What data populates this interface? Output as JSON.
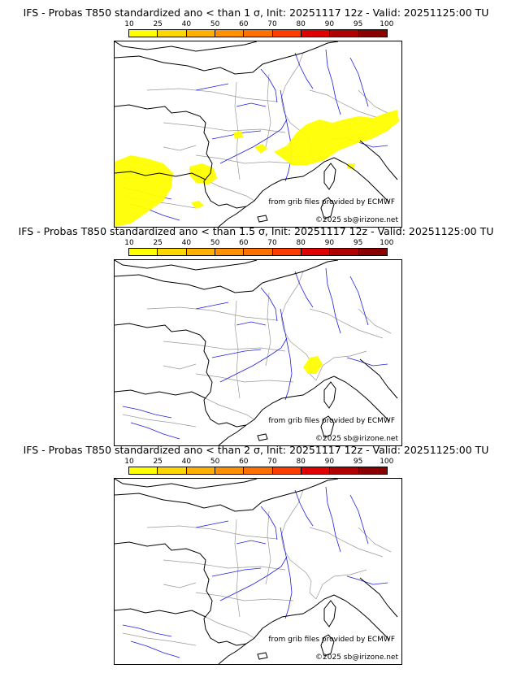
{
  "legend": {
    "ticks": [
      "10",
      "25",
      "40",
      "50",
      "60",
      "70",
      "80",
      "90",
      "95",
      "100"
    ],
    "colors": [
      "#ffff00",
      "#ffd700",
      "#ffb000",
      "#ff9000",
      "#ff7000",
      "#ff3c00",
      "#e00000",
      "#b00000",
      "#8a0000"
    ]
  },
  "map": {
    "coast_color": "#000000",
    "river_color": "#2020dd",
    "border_color": "#999999"
  },
  "panels": [
    {
      "title": "IFS - Probas T850  standardized ano < than 1 σ, Init: 20251117 12z - Valid: 20251125:00 TU",
      "source": "from grib files provided by ECMWF",
      "copyright": "©2025 sb@irizone.net",
      "threshold_sigma": "1"
    },
    {
      "title": "IFS - Probas T850  standardized ano < than 1.5 σ, Init: 20251117 12z - Valid: 20251125:00 TU",
      "source": "from grib files provided by ECMWF",
      "copyright": "©2025 sb@irizone.net",
      "threshold_sigma": "1.5"
    },
    {
      "title": "IFS - Probas T850  standardized ano < than 2 σ, Init: 20251117 12z - Valid: 20251125:00 TU",
      "source": "from grib files provided by ECMWF",
      "copyright": "©2025 sb@irizone.net",
      "threshold_sigma": "2"
    }
  ]
}
